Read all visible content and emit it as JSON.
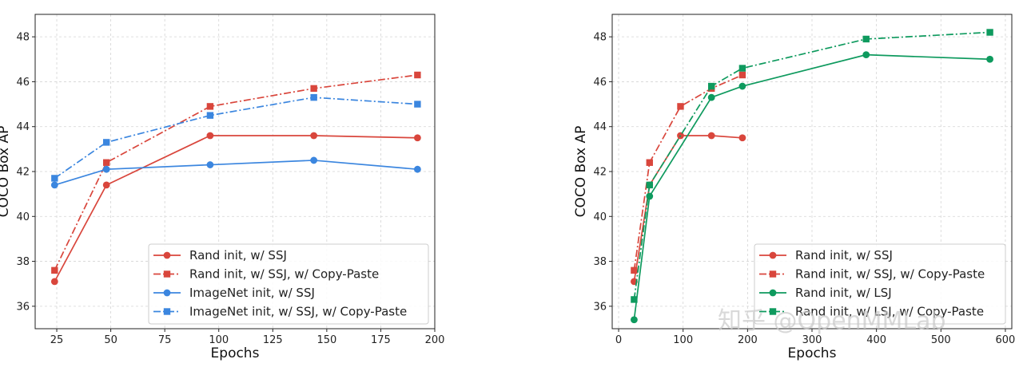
{
  "chart_data": [
    {
      "type": "line",
      "xlabel": "Epochs",
      "ylabel": "COCO Box AP",
      "xlim": [
        15,
        200
      ],
      "ylim": [
        35,
        49
      ],
      "xticks": [
        25,
        50,
        75,
        100,
        125,
        150,
        175,
        200
      ],
      "yticks": [
        36,
        38,
        40,
        42,
        44,
        46,
        48
      ],
      "grid": true,
      "legend_position": "lower-right",
      "series": [
        {
          "name": "Rand init, w/ SSJ",
          "color": "#d9463c",
          "marker": "circle",
          "dash": "solid",
          "x": [
            24,
            48,
            96,
            144,
            192
          ],
          "y": [
            37.1,
            41.4,
            43.6,
            43.6,
            43.5
          ]
        },
        {
          "name": "Rand init, w/ SSJ, w/ Copy-Paste",
          "color": "#d9463c",
          "marker": "square",
          "dash": "dashdot",
          "x": [
            24,
            48,
            96,
            144,
            192
          ],
          "y": [
            37.6,
            42.4,
            44.9,
            45.7,
            46.3
          ]
        },
        {
          "name": "ImageNet init, w/ SSJ",
          "color": "#3b86df",
          "marker": "circle",
          "dash": "solid",
          "x": [
            24,
            48,
            96,
            144,
            192
          ],
          "y": [
            41.4,
            42.1,
            42.3,
            42.5,
            42.1
          ]
        },
        {
          "name": "ImageNet init, w/ SSJ, w/ Copy-Paste",
          "color": "#3b86df",
          "marker": "square",
          "dash": "dashdot",
          "x": [
            24,
            48,
            96,
            144,
            192
          ],
          "y": [
            41.7,
            43.3,
            44.5,
            45.3,
            45.0
          ]
        }
      ]
    },
    {
      "type": "line",
      "xlabel": "Epochs",
      "ylabel": "COCO Box AP",
      "xlim": [
        -10,
        610
      ],
      "ylim": [
        35,
        49
      ],
      "xticks": [
        0,
        100,
        200,
        300,
        400,
        500,
        600
      ],
      "yticks": [
        36,
        38,
        40,
        42,
        44,
        46,
        48
      ],
      "grid": true,
      "legend_position": "lower-right",
      "series": [
        {
          "name": "Rand init, w/ SSJ",
          "color": "#d9463c",
          "marker": "circle",
          "dash": "solid",
          "x": [
            24,
            48,
            96,
            144,
            192
          ],
          "y": [
            37.1,
            41.4,
            43.6,
            43.6,
            43.5
          ]
        },
        {
          "name": "Rand init, w/ SSJ, w/ Copy-Paste",
          "color": "#d9463c",
          "marker": "square",
          "dash": "dashdot",
          "x": [
            24,
            48,
            96,
            144,
            192
          ],
          "y": [
            37.6,
            42.4,
            44.9,
            45.7,
            46.3
          ]
        },
        {
          "name": "Rand init, w/ LSJ",
          "color": "#0e9a5e",
          "marker": "circle",
          "dash": "solid",
          "x": [
            24,
            48,
            144,
            192,
            384,
            576
          ],
          "y": [
            35.4,
            40.9,
            45.3,
            45.8,
            47.2,
            47.0
          ]
        },
        {
          "name": "Rand init, w/ LSJ, w/ Copy-Paste",
          "color": "#0e9a5e",
          "marker": "square",
          "dash": "dashdot",
          "x": [
            24,
            48,
            144,
            192,
            384,
            576
          ],
          "y": [
            36.3,
            41.4,
            45.8,
            46.6,
            47.9,
            48.2
          ]
        }
      ]
    }
  ],
  "watermark": "知乎 @OpenMMLab"
}
